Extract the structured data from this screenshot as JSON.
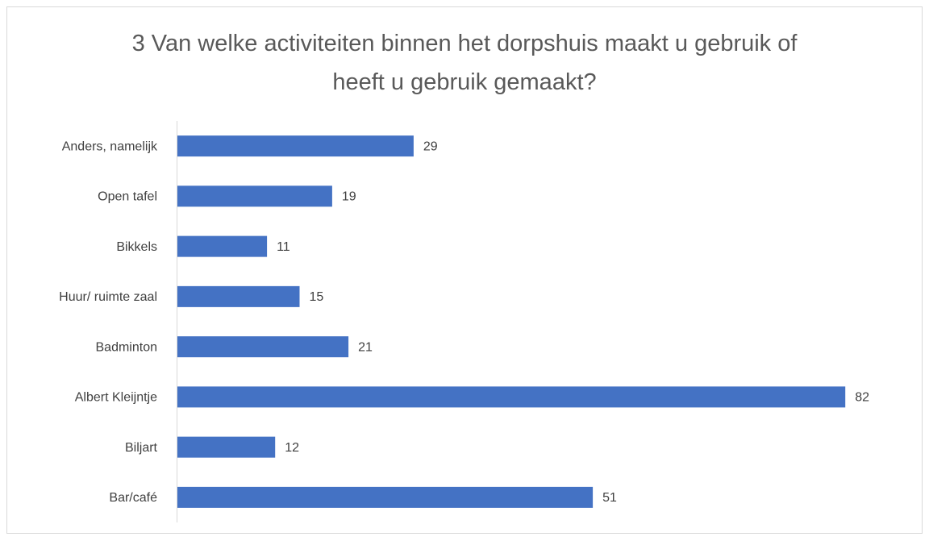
{
  "chart_data": {
    "type": "bar",
    "orientation": "horizontal",
    "title": "3 Van welke activiteiten binnen het dorpshuis maakt u gebruik of heeft u gebruik gemaakt?",
    "categories": [
      "Anders, namelijk",
      "Open tafel",
      "Bikkels",
      "Huur/ ruimte zaal",
      "Badminton",
      "Albert Kleijntje",
      "Biljart",
      "Bar/café"
    ],
    "values": [
      29,
      19,
      11,
      15,
      21,
      82,
      12,
      51
    ],
    "color": "#4472c4",
    "xlim": [
      0,
      90
    ]
  }
}
